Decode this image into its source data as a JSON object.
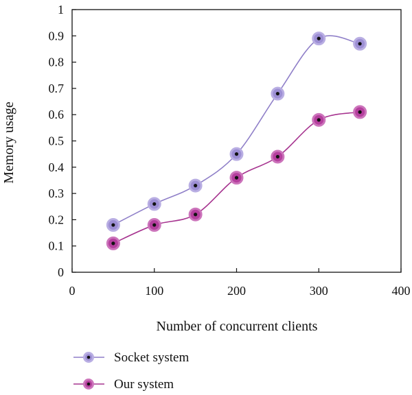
{
  "chart_data": {
    "type": "line",
    "title": "",
    "xlabel": "Number of concurrent clients",
    "ylabel": "Memory usage",
    "xlim": [
      0,
      400
    ],
    "ylim": [
      0,
      1
    ],
    "xticks": [
      0,
      100,
      200,
      300,
      400
    ],
    "xtick_labels": [
      "0",
      "100",
      "200",
      "300",
      "400"
    ],
    "yticks": [
      0,
      0.1,
      0.2,
      0.3,
      0.4,
      0.5,
      0.6,
      0.7,
      0.8,
      0.9,
      1
    ],
    "ytick_labels": [
      "0",
      "0.1",
      "0.2",
      "0.3",
      "0.4",
      "0.5",
      "0.6",
      "0.7",
      "0.8",
      "0.9",
      "1"
    ],
    "grid": false,
    "legend_position": "bottom-left",
    "x": [
      50,
      100,
      150,
      200,
      250,
      300,
      350
    ],
    "series": [
      {
        "name": "Socket system",
        "values": [
          0.18,
          0.26,
          0.33,
          0.45,
          0.68,
          0.89,
          0.87
        ],
        "line_color": "#8f7fc8",
        "marker_color": "#9d8fd4",
        "marker_edge": "#b9aee3"
      },
      {
        "name": "Our system",
        "values": [
          0.11,
          0.18,
          0.22,
          0.36,
          0.44,
          0.58,
          0.61
        ],
        "line_color": "#a6338f",
        "marker_color": "#b53f9e",
        "marker_edge": "#cc74bb"
      }
    ]
  }
}
